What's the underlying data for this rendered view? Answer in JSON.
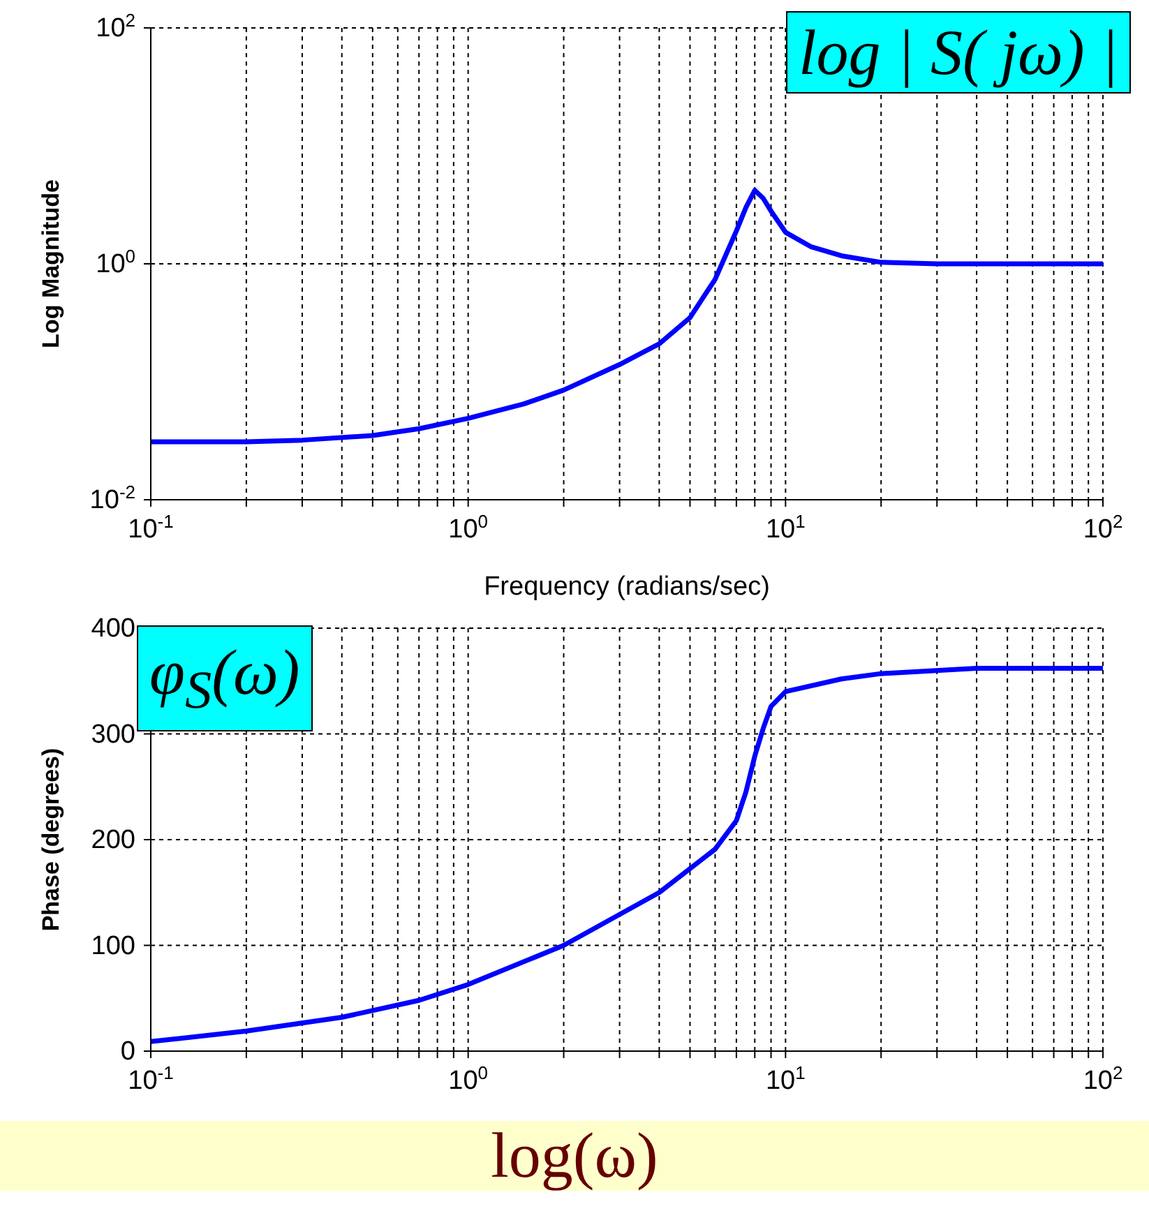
{
  "chart_data": [
    {
      "type": "line",
      "xlabel": "Frequency (radians/sec)",
      "ylabel": "Log Magnitude",
      "log": "xy",
      "grid": true,
      "line_style": "solid",
      "marker": "none",
      "annotations": [
        "log | S( jω) |"
      ],
      "xlim": [
        0.1,
        100
      ],
      "ylim": [
        0.01,
        100
      ],
      "xticks": [
        {
          "value": 0.1,
          "label": "10$^{-1}$"
        },
        {
          "value": 0.2,
          "label": null
        },
        {
          "value": 0.3,
          "label": null
        },
        {
          "value": 0.4,
          "label": null
        },
        {
          "value": 0.5,
          "label": null
        },
        {
          "value": 0.6,
          "label": null
        },
        {
          "value": 0.7,
          "label": null
        },
        {
          "value": 0.8,
          "label": null
        },
        {
          "value": 0.9,
          "label": null
        },
        {
          "value": 1,
          "label": "10$^{0}$"
        },
        {
          "value": 2,
          "label": null
        },
        {
          "value": 3,
          "label": null
        },
        {
          "value": 4,
          "label": null
        },
        {
          "value": 5,
          "label": null
        },
        {
          "value": 6,
          "label": null
        },
        {
          "value": 7,
          "label": null
        },
        {
          "value": 8,
          "label": null
        },
        {
          "value": 9,
          "label": null
        },
        {
          "value": 10,
          "label": "10$^{1}$"
        },
        {
          "value": 20,
          "label": null
        },
        {
          "value": 30,
          "label": null
        },
        {
          "value": 40,
          "label": null
        },
        {
          "value": 50,
          "label": null
        },
        {
          "value": 60,
          "label": null
        },
        {
          "value": 70,
          "label": null
        },
        {
          "value": 80,
          "label": null
        },
        {
          "value": 90,
          "label": null
        },
        {
          "value": 100,
          "label": "10$^{2}$"
        }
      ],
      "yticks": [
        {
          "value": 0.01,
          "label": "10$^{-2}$"
        },
        {
          "value": 1,
          "label": "10$^{0}$"
        },
        {
          "value": 100,
          "label": "10$^{2}$"
        }
      ],
      "series": [
        {
          "color": "#0000ff",
          "x": [
            0.1,
            0.2,
            0.3,
            0.5,
            0.7,
            1,
            1.5,
            2,
            3,
            4,
            5,
            6,
            7,
            7.5,
            8,
            8.5,
            9,
            10,
            12,
            15,
            20,
            30,
            50,
            100
          ],
          "values": [
            0.031,
            0.031,
            0.032,
            0.035,
            0.04,
            0.049,
            0.065,
            0.085,
            0.14,
            0.21,
            0.35,
            0.74,
            1.9,
            3.0,
            4.2,
            3.6,
            2.8,
            1.85,
            1.4,
            1.17,
            1.03,
            1.0,
            1.0,
            1.0
          ]
        }
      ]
    },
    {
      "type": "line",
      "xlabel": "log(ω)",
      "ylabel": "Phase (degrees)",
      "log": "x",
      "grid": true,
      "line_style": "solid",
      "marker": "none",
      "annotations": [
        "φ$_{S}$(ω)"
      ],
      "xlim": [
        0.1,
        100
      ],
      "ylim": [
        0,
        400
      ],
      "xticks": [
        {
          "value": 0.1,
          "label": "10$^{-1}$"
        },
        {
          "value": 0.2,
          "label": null
        },
        {
          "value": 0.3,
          "label": null
        },
        {
          "value": 0.4,
          "label": null
        },
        {
          "value": 0.5,
          "label": null
        },
        {
          "value": 0.6,
          "label": null
        },
        {
          "value": 0.7,
          "label": null
        },
        {
          "value": 0.8,
          "label": null
        },
        {
          "value": 0.9,
          "label": null
        },
        {
          "value": 1,
          "label": "10$^{0}$"
        },
        {
          "value": 2,
          "label": null
        },
        {
          "value": 3,
          "label": null
        },
        {
          "value": 4,
          "label": null
        },
        {
          "value": 5,
          "label": null
        },
        {
          "value": 6,
          "label": null
        },
        {
          "value": 7,
          "label": null
        },
        {
          "value": 8,
          "label": null
        },
        {
          "value": 9,
          "label": null
        },
        {
          "value": 10,
          "label": "10$^{1}$"
        },
        {
          "value": 20,
          "label": null
        },
        {
          "value": 30,
          "label": null
        },
        {
          "value": 40,
          "label": null
        },
        {
          "value": 50,
          "label": null
        },
        {
          "value": 60,
          "label": null
        },
        {
          "value": 70,
          "label": null
        },
        {
          "value": 80,
          "label": null
        },
        {
          "value": 90,
          "label": null
        },
        {
          "value": 100,
          "label": "10$^{2}$"
        }
      ],
      "yticks": [
        0,
        100,
        200,
        300,
        400
      ],
      "series": [
        {
          "color": "#0000ff",
          "x": [
            0.1,
            0.2,
            0.4,
            0.7,
            1,
            2,
            4,
            6,
            7,
            7.5,
            8,
            8.5,
            9,
            10,
            15,
            20,
            40,
            100
          ],
          "values": [
            9,
            19,
            32,
            48,
            63,
            100,
            150,
            191,
            218,
            245,
            279,
            305,
            326,
            340,
            352,
            357,
            362,
            362
          ]
        }
      ]
    }
  ]
}
